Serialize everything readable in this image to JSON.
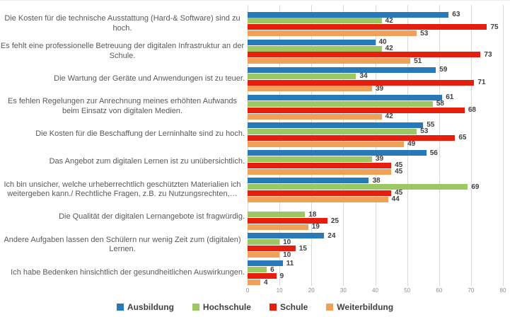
{
  "chart_data": {
    "type": "bar",
    "orientation": "horizontal",
    "title": "",
    "xlabel": "",
    "ylabel": "",
    "xlim": [
      0,
      80
    ],
    "x_ticks": [
      0,
      10,
      20,
      30,
      40,
      50,
      60,
      70,
      80
    ],
    "grid": true,
    "data_labels": true,
    "legend_position": "bottom",
    "categories": [
      "Die Kosten für die technische Ausstattung (Hard-& Software) sind zu hoch.",
      "Es fehlt eine professionelle Betreuung der digitalen Infrastruktur an der Schule.",
      "Die Wartung der Geräte und Anwendungen ist zu teuer.",
      "Es fehlen Regelungen zur Anrechnung meines erhöhten Aufwands beim Einsatz von digitalen Medien.",
      "Die Kosten für die Beschaffung der Lerninhalte sind zu hoch.",
      "Das Angebot zum digitalen Lernen ist zu unübersichtlich.",
      "Ich bin unsicher, welche urheberrechtlich geschützten Materialien ich weitergeben kann./ Rechtliche Fragen, z.B. zu Nutzungsrechten,…",
      "Die Qualität der digitalen Lernangebote ist fragwürdig.",
      "Andere Aufgaben lassen den Schülern nur wenig Zeit zum (digitalen) Lernen.",
      "Ich habe Bedenken hinsichtlich der gesundheitlichen Auswirkungen."
    ],
    "series": [
      {
        "name": "Ausbildung",
        "color": "#2879B9",
        "values": [
          63,
          40,
          59,
          61,
          55,
          56,
          38,
          null,
          24,
          11
        ]
      },
      {
        "name": "Hochschule",
        "color": "#9DC763",
        "values": [
          42,
          42,
          34,
          58,
          53,
          39,
          69,
          18,
          10,
          6
        ]
      },
      {
        "name": "Schule",
        "color": "#E51E0E",
        "values": [
          75,
          73,
          71,
          68,
          65,
          45,
          45,
          25,
          15,
          9
        ]
      },
      {
        "name": "Weiterbildung",
        "color": "#F0A159",
        "values": [
          53,
          51,
          39,
          42,
          49,
          45,
          44,
          19,
          10,
          4
        ]
      }
    ]
  },
  "colors": {
    "background": "#FFFFFF",
    "gridline": "#D9D9D9",
    "category_label": "#595959",
    "value_label": "#404040",
    "axis_tick": "#8C8C8C",
    "legend_text": "#404040"
  }
}
